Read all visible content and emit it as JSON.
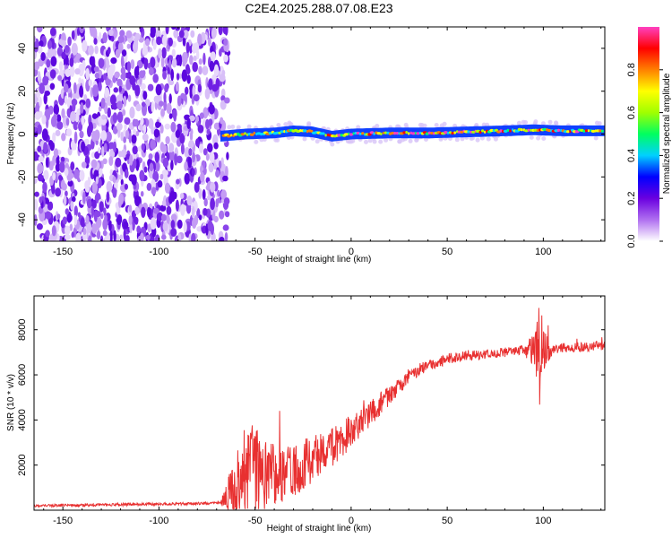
{
  "chart_data": [
    {
      "type": "heatmap",
      "title": "C2E4.2025.288.07.08.E23",
      "xlabel": "Height of straight line (km)",
      "ylabel": "Frequency (Hz)",
      "xlim": [
        -165,
        132
      ],
      "ylim": [
        -50,
        50
      ],
      "x_ticks": [
        -150,
        -100,
        -50,
        0,
        50,
        100
      ],
      "x_tick_labels": [
        "-150",
        "-100",
        "-50",
        "0",
        "50",
        "100"
      ],
      "y_ticks": [
        -40,
        -20,
        0,
        20,
        40
      ],
      "y_tick_labels": [
        "-40",
        "-20",
        "0",
        "20",
        "40"
      ],
      "noise_region_x": [
        -165,
        -67
      ],
      "signal_line": {
        "x": [
          -68,
          -55,
          -40,
          -30,
          -20,
          -10,
          0,
          20,
          40,
          60,
          80,
          95,
          110,
          132
        ],
        "frequency": [
          -1,
          0,
          0.5,
          1.5,
          1,
          -1,
          0,
          0.5,
          0.5,
          1,
          1.5,
          2,
          1.5,
          1.5
        ]
      },
      "colorbar": {
        "label": "Normalized spectral amplitude",
        "range": [
          0,
          1
        ],
        "ticks": [
          0.0,
          0.2,
          0.4,
          0.6,
          0.8
        ],
        "tick_labels": [
          "0.0",
          "0.2",
          "0.4",
          "0.6",
          "0.8"
        ],
        "colors": [
          "#ffffff",
          "#b070f0",
          "#6a00e0",
          "#0000ff",
          "#00d0ff",
          "#00ff60",
          "#a0ff00",
          "#ffff00",
          "#ff8000",
          "#ff0000",
          "#ff40c0"
        ]
      }
    },
    {
      "type": "line",
      "xlabel": "Height of straight line (km)",
      "ylabel": "SNR (10 * v/v)",
      "xlim": [
        -165,
        132
      ],
      "ylim": [
        0,
        9500
      ],
      "x_ticks": [
        -150,
        -100,
        -50,
        0,
        50,
        100
      ],
      "x_tick_labels": [
        "-150",
        "-100",
        "-50",
        "0",
        "50",
        "100"
      ],
      "y_ticks": [
        2000,
        4000,
        6000,
        8000
      ],
      "y_tick_labels": [
        "2000",
        "4000",
        "6000",
        "8000"
      ],
      "series": [
        {
          "name": "SNR",
          "color": "#e83030",
          "x": [
            -165,
            -140,
            -120,
            -100,
            -80,
            -68,
            -60,
            -55,
            -50,
            -45,
            -40,
            -35,
            -30,
            -25,
            -20,
            -15,
            -10,
            -5,
            0,
            5,
            10,
            15,
            20,
            25,
            30,
            35,
            40,
            50,
            60,
            70,
            80,
            90,
            96,
            98,
            100,
            105,
            110,
            120,
            132
          ],
          "mean": [
            200,
            220,
            250,
            270,
            300,
            320,
            800,
            1800,
            2000,
            1500,
            1500,
            1600,
            1800,
            2000,
            2200,
            2500,
            2800,
            3100,
            3500,
            3800,
            4200,
            4700,
            5100,
            5500,
            5900,
            6200,
            6450,
            6700,
            6850,
            6900,
            7000,
            7100,
            7100,
            7050,
            7100,
            7150,
            7200,
            7250,
            7300
          ],
          "amp": [
            60,
            60,
            60,
            60,
            60,
            60,
            1700,
            2000,
            2100,
            1700,
            1400,
            1300,
            1200,
            1200,
            1100,
            1000,
            900,
            800,
            750,
            700,
            650,
            550,
            450,
            350,
            300,
            280,
            260,
            240,
            220,
            210,
            210,
            210,
            900,
            2600,
            900,
            220,
            210,
            210,
            200
          ]
        }
      ]
    }
  ]
}
